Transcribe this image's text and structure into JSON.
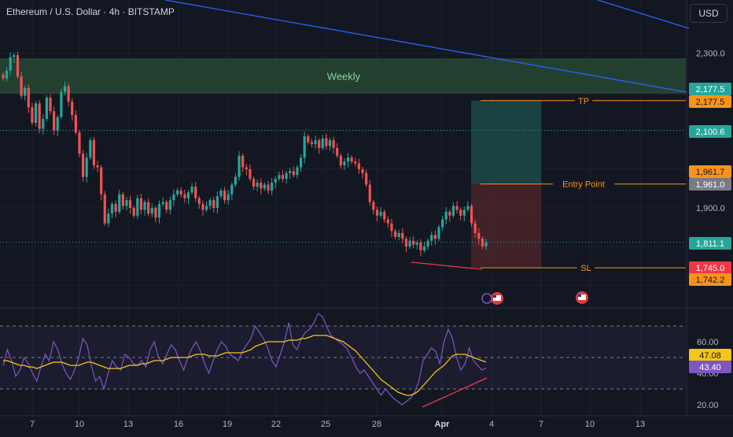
{
  "header": {
    "title": "Ethereum / U.S. Dollar · 4h · BITSTAMP",
    "currency": "USD"
  },
  "colors": {
    "background": "#131722",
    "up": "#26a69a",
    "down": "#ef5350",
    "trendline": "#2962ff",
    "accent_orange": "#f7931a",
    "rsi_line": "#7e57c2",
    "rsi_ma": "#f5c518"
  },
  "chart_data": [
    {
      "type": "candlestick",
      "panel": "price",
      "y_axis": {
        "ticks": [
          "2,300.0",
          "1,900.0"
        ],
        "tick_values": [
          2300,
          1900
        ]
      },
      "x_axis": {
        "ticks": [
          "7",
          "10",
          "13",
          "16",
          "19",
          "22",
          "25",
          "28",
          "Apr",
          "4",
          "7",
          "10",
          "13"
        ]
      },
      "zones": [
        {
          "label": "Weekly",
          "from": 2195,
          "to": 2287
        },
        {
          "label": "",
          "kind": "profit",
          "from": 1961.7,
          "to": 2177.5
        },
        {
          "label": "",
          "kind": "risk",
          "from": 1745.0,
          "to": 1961.7
        }
      ],
      "levels": [
        {
          "label": "TP",
          "value": 2177.5,
          "tag": "2,177.5"
        },
        {
          "label": "Entry Point",
          "value": 1961.7,
          "tag": "1,961.7"
        },
        {
          "label": "SL",
          "value": 1745.0,
          "tag": "1,745.0"
        }
      ],
      "price_tags": [
        {
          "text": "2,177.5",
          "value": 2177.5,
          "color": "#26a69a"
        },
        {
          "text": "2,100.6",
          "value": 2100.6,
          "color": "#26a69a"
        },
        {
          "text": "1,961.0",
          "value": 1961.0,
          "color": "#787b86"
        },
        {
          "text": "1,811.1",
          "value": 1811.1,
          "color": "#26a69a"
        },
        {
          "text": "1,742.2",
          "value": 1742.2,
          "color": "#f7931a"
        }
      ],
      "dotted_levels": [
        2100.6,
        1811.1
      ],
      "closes": [
        2235,
        2255,
        2290,
        2295,
        2240,
        2190,
        2210,
        2160,
        2120,
        2170,
        2105,
        2130,
        2185,
        2150,
        2100,
        2135,
        2200,
        2215,
        2175,
        2140,
        2095,
        2040,
        1980,
        2030,
        2075,
        2010,
        2005,
        1935,
        1860,
        1885,
        1910,
        1890,
        1935,
        1905,
        1920,
        1900,
        1880,
        1925,
        1895,
        1915,
        1885,
        1900,
        1875,
        1910,
        1915,
        1895,
        1920,
        1935,
        1945,
        1935,
        1925,
        1940,
        1955,
        1925,
        1910,
        1895,
        1905,
        1920,
        1900,
        1930,
        1945,
        1920,
        1935,
        1960,
        1980,
        2035,
        2005,
        2000,
        1975,
        1955,
        1965,
        1950,
        1960,
        1945,
        1965,
        1975,
        1985,
        1975,
        1990,
        1995,
        1985,
        2005,
        2030,
        2085,
        2070,
        2065,
        2075,
        2055,
        2080,
        2060,
        2075,
        2055,
        2035,
        2010,
        2020,
        2030,
        2020,
        2015,
        2000,
        1990,
        1960,
        1915,
        1895,
        1880,
        1890,
        1870,
        1860,
        1840,
        1825,
        1835,
        1820,
        1800,
        1815,
        1805,
        1810,
        1790,
        1800,
        1815,
        1830,
        1820,
        1850,
        1870,
        1890,
        1880,
        1905,
        1895,
        1880,
        1895,
        1905,
        1860,
        1835,
        1820,
        1800,
        1811.1
      ]
    },
    {
      "type": "line",
      "panel": "rsi",
      "y_axis": {
        "ticks": [
          "60.00",
          "40.00",
          "20.00"
        ],
        "tick_values": [
          60,
          40,
          20
        ],
        "band": [
          30,
          70
        ]
      },
      "series": [
        {
          "kind": "rsi",
          "current": "43.40",
          "color": "#7e57c2"
        },
        {
          "kind": "ma",
          "current": "47.08",
          "color": "#f5c518"
        }
      ],
      "rsi_values": [
        45,
        55,
        48,
        38,
        42,
        50,
        46,
        40,
        35,
        44,
        52,
        48,
        60,
        55,
        46,
        40,
        36,
        42,
        50,
        62,
        58,
        45,
        35,
        38,
        30,
        40,
        48,
        44,
        42,
        52,
        50,
        46,
        45,
        48,
        44,
        55,
        60,
        50,
        46,
        52,
        58,
        55,
        48,
        42,
        50,
        56,
        60,
        54,
        46,
        40,
        48,
        55,
        60,
        57,
        52,
        50,
        48,
        54,
        58,
        62,
        70,
        66,
        62,
        56,
        48,
        44,
        52,
        60,
        72,
        58,
        55,
        62,
        66,
        68,
        72,
        78,
        76,
        70,
        64,
        62,
        60,
        58,
        55,
        50,
        44,
        40,
        42,
        38,
        34,
        30,
        26,
        30,
        27,
        24,
        22,
        20,
        22,
        24,
        28,
        35,
        48,
        52,
        56,
        54,
        46,
        60,
        68,
        62,
        50,
        42,
        46,
        56,
        48,
        45,
        42,
        43.4
      ],
      "ma_values": [
        48,
        48,
        47,
        46,
        45,
        45,
        44,
        44,
        43,
        44,
        45,
        46,
        47,
        47,
        47,
        46,
        45,
        45,
        45,
        46,
        47,
        47,
        46,
        45,
        44,
        43,
        43,
        43,
        43,
        44,
        45,
        45,
        45,
        46,
        46,
        47,
        48,
        48,
        48,
        49,
        50,
        50,
        50,
        50,
        50,
        51,
        52,
        52,
        52,
        51,
        51,
        51,
        52,
        53,
        53,
        53,
        53,
        53,
        54,
        55,
        57,
        58,
        59,
        60,
        60,
        60,
        60,
        60,
        61,
        61,
        61,
        62,
        62,
        63,
        64,
        64,
        64,
        64,
        63,
        62,
        61,
        60,
        58,
        56,
        54,
        51,
        48,
        45,
        42,
        39,
        36,
        34,
        32,
        30,
        28,
        27,
        26,
        26,
        27,
        29,
        32,
        35,
        38,
        41,
        43,
        45,
        48,
        51,
        52,
        52,
        52,
        51,
        50,
        49,
        48,
        47.08
      ]
    }
  ]
}
